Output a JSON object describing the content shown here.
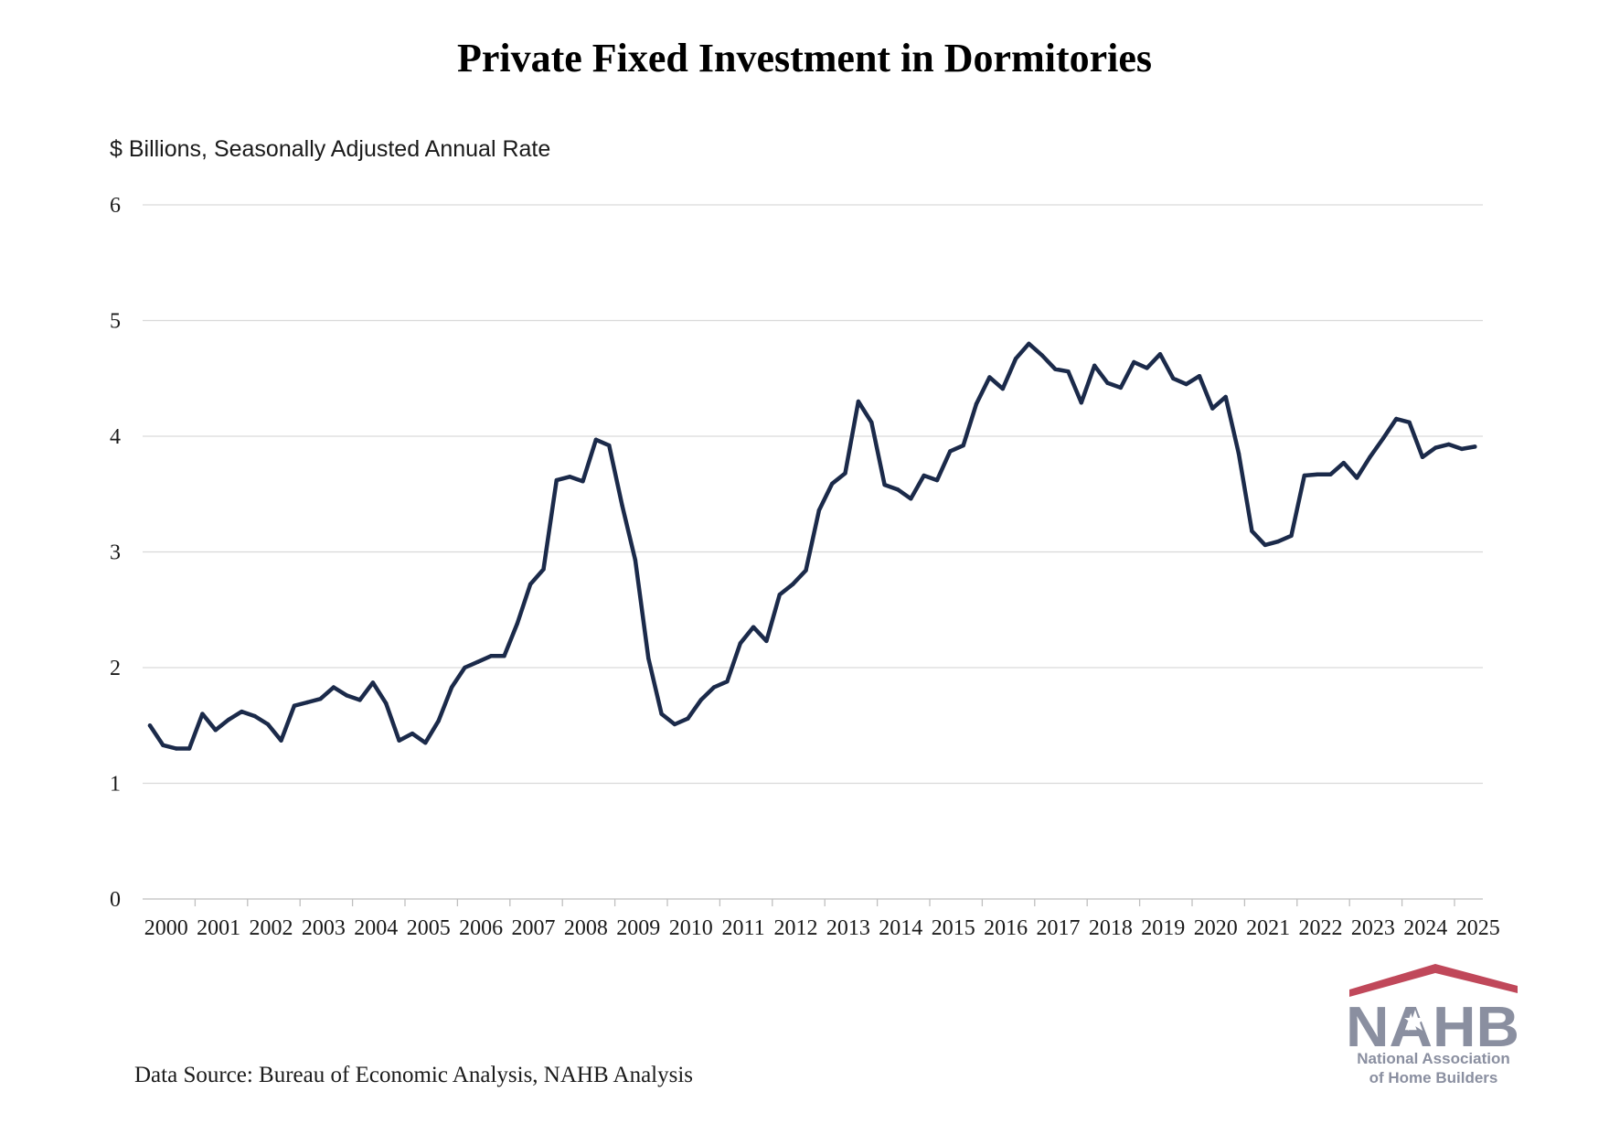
{
  "chart_data": {
    "type": "line",
    "title": "Private Fixed Investment in Dormitories",
    "ylabel": "$ Billions, Seasonally Adjusted Annual Rate",
    "xlabel": "",
    "ylim": [
      0,
      6
    ],
    "yticks": [
      "0",
      "1",
      "2",
      "3",
      "4",
      "5",
      "6"
    ],
    "xticks": [
      "2000",
      "2001",
      "2002",
      "2003",
      "2004",
      "2005",
      "2006",
      "2007",
      "2008",
      "2009",
      "2010",
      "2011",
      "2012",
      "2013",
      "2014",
      "2015",
      "2016",
      "2017",
      "2018",
      "2019",
      "2020",
      "2021",
      "2022",
      "2023",
      "2024",
      "2025"
    ],
    "grid": true,
    "frequency": "quarterly",
    "series": [
      {
        "color": "#1b2a4a",
        "values": [
          1.5,
          1.33,
          1.3,
          1.3,
          1.6,
          1.46,
          1.55,
          1.62,
          1.58,
          1.51,
          1.37,
          1.67,
          1.7,
          1.73,
          1.83,
          1.76,
          1.72,
          1.87,
          1.69,
          1.37,
          1.43,
          1.35,
          1.54,
          1.83,
          2.0,
          2.05,
          2.1,
          2.1,
          2.38,
          2.72,
          2.85,
          3.62,
          3.65,
          3.61,
          3.97,
          3.92,
          3.4,
          2.93,
          2.08,
          1.6,
          1.51,
          1.56,
          1.72,
          1.83,
          1.88,
          2.21,
          2.35,
          2.23,
          2.63,
          2.72,
          2.84,
          3.36,
          3.59,
          3.68,
          4.3,
          4.12,
          3.58,
          3.54,
          3.46,
          3.66,
          3.62,
          3.87,
          3.92,
          4.28,
          4.51,
          4.41,
          4.67,
          4.8,
          4.7,
          4.58,
          4.56,
          4.29,
          4.61,
          4.46,
          4.42,
          4.64,
          4.59,
          4.71,
          4.5,
          4.45,
          4.52,
          4.24,
          4.34,
          3.85,
          3.18,
          3.06,
          3.09,
          3.14,
          3.66,
          3.67,
          3.67,
          3.77,
          3.64,
          3.82,
          3.98,
          4.15,
          4.12,
          3.82,
          3.9,
          3.93,
          3.89,
          3.91
        ]
      }
    ]
  },
  "footer": {
    "source": "Data Source: Bureau of Economic Analysis, NAHB Analysis"
  },
  "logo": {
    "mark": "NAHB",
    "line1": "National Association",
    "line2": "of Home Builders",
    "colors": {
      "roof": "#c0485a",
      "letters": "#8a8fa0",
      "star": "#ffffff"
    }
  }
}
